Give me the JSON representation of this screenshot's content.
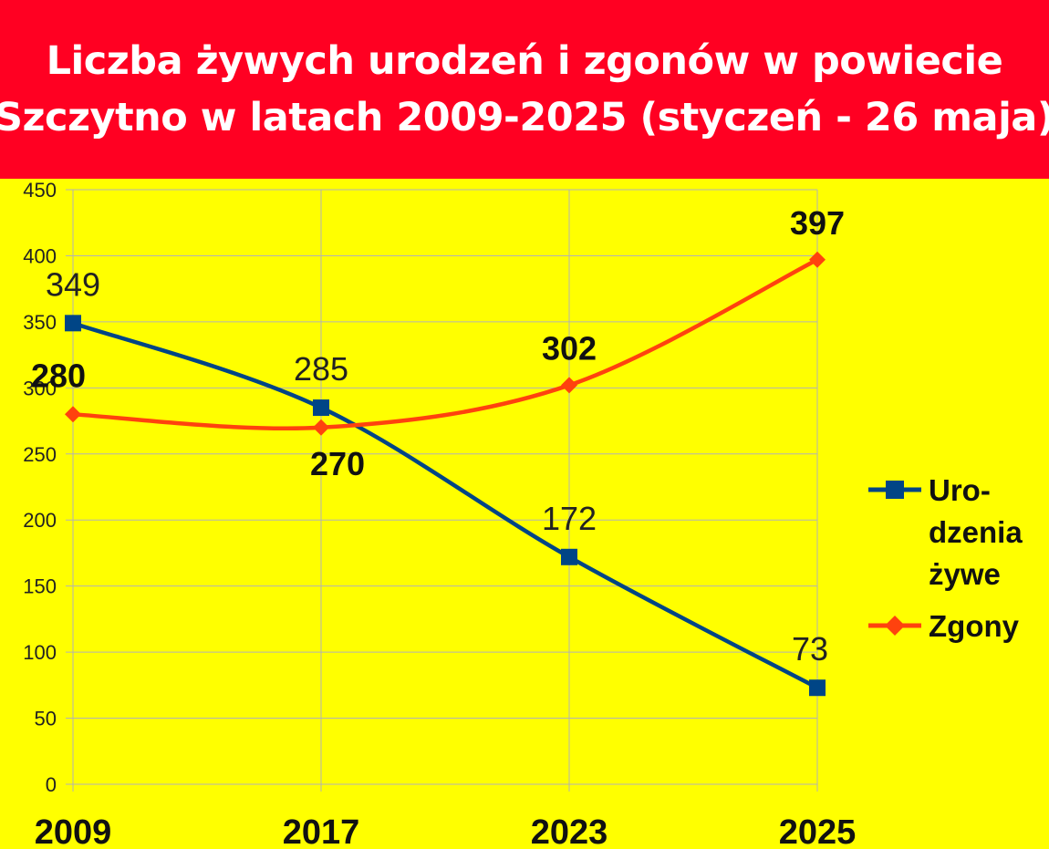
{
  "title": {
    "line1": "Liczba żywych urodzeń i zgonów w powiecie",
    "line2": "Szczytno w latach 2009-2025 (styczeń - 26 maja)"
  },
  "chart_data": {
    "type": "line",
    "x": [
      "2009",
      "2017",
      "2023",
      "2025"
    ],
    "series": [
      {
        "name_lines": [
          "Uro-",
          "dzenia",
          "żywe"
        ],
        "values": [
          349,
          285,
          172,
          73
        ],
        "color": "#004586",
        "marker": "square",
        "label_style": "plain"
      },
      {
        "name_lines": [
          "Zgony"
        ],
        "values": [
          280,
          270,
          302,
          397
        ],
        "color": "#ff420e",
        "marker": "diamond",
        "label_style": "bold"
      }
    ],
    "ylim": [
      0,
      450
    ],
    "yticks": [
      0,
      50,
      100,
      150,
      200,
      250,
      300,
      350,
      400,
      450
    ],
    "grid": true,
    "legend": "right",
    "smooth": true
  }
}
